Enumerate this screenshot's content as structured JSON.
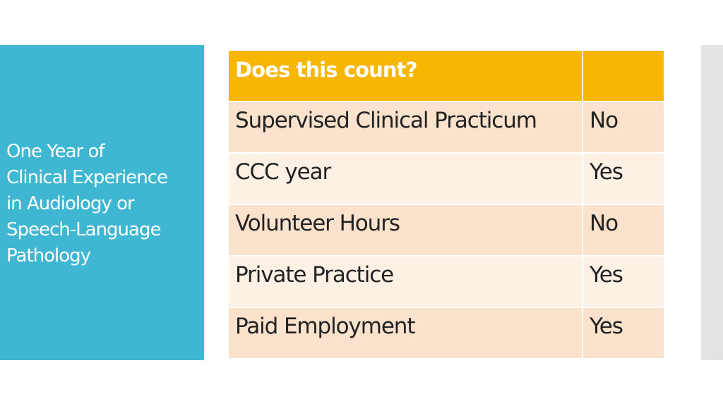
{
  "slide": {
    "side_title_lines": [
      "One Year of",
      "Clinical Experience",
      "in Audiology or",
      "Speech-Language",
      "Pathology"
    ]
  },
  "table": {
    "headers": [
      "Does this count?",
      ""
    ],
    "rows": [
      [
        "Supervised Clinical Practicum",
        "No"
      ],
      [
        "CCC year",
        "Yes"
      ],
      [
        "Volunteer Hours",
        "No"
      ],
      [
        "Private Practice",
        "Yes"
      ],
      [
        "Paid Employment",
        "Yes"
      ]
    ]
  },
  "colors": {
    "side_panel": "#3fb6d2",
    "header_fill": "#f8b600",
    "row_odd": "#fbe2cc",
    "row_even": "#fdf1e6",
    "right_strip": "#e3e3e3"
  }
}
